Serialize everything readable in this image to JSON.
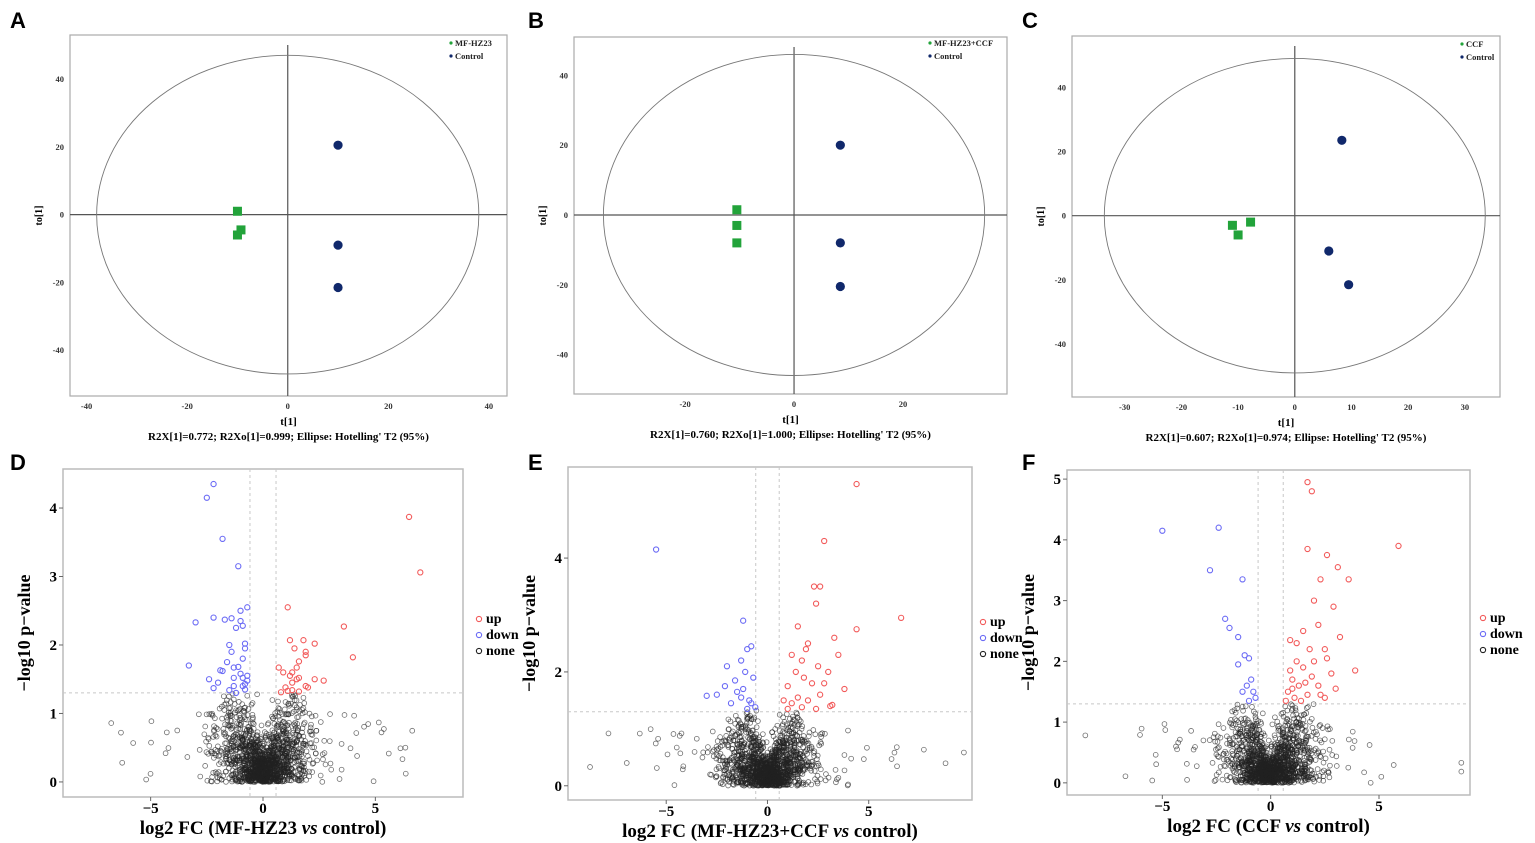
{
  "colors": {
    "green": "#22a33a",
    "navy": "#10286b",
    "up": "#f25b5b",
    "down": "#6b6bf5",
    "none": "#222222",
    "axis": "#555555",
    "box": "#bbbbbb",
    "threshold": "#c8c8c8"
  },
  "chart_data": [
    {
      "panel": "A",
      "type": "scatter",
      "title": "",
      "xlabel": "t[1]",
      "ylabel": "to[1]",
      "caption": "R2X[1]=0.772; R2Xo[1]=0.999; Ellipse: Hotelling' T2 (95%)",
      "xticks": [
        -40,
        -20,
        0,
        20,
        40
      ],
      "yticks": [
        40,
        20,
        0,
        -20,
        -40
      ],
      "xlim": [
        -43.3,
        43.6
      ],
      "ylim": [
        -53.5,
        53
      ],
      "ellipse": {
        "rx": 38,
        "ry": 47
      },
      "legend_position": "top-right",
      "series": [
        {
          "name": "MF-HZ23",
          "marker": "square",
          "color_key": "green",
          "points": [
            [
              -10,
              1
            ],
            [
              -9.3,
              -4.5
            ],
            [
              -10,
              -6
            ]
          ]
        },
        {
          "name": "Control",
          "marker": "circle",
          "color_key": "navy",
          "points": [
            [
              10,
              20.5
            ],
            [
              10,
              -9
            ],
            [
              10,
              -21.5
            ]
          ]
        }
      ]
    },
    {
      "panel": "B",
      "type": "scatter",
      "title": "",
      "xlabel": "t[1]",
      "ylabel": "to[1]",
      "caption": "R2X[1]=0.760; R2Xo[1]=1.000; Ellipse: Hotelling' T2 (95%)",
      "xticks": [
        -20,
        0,
        20
      ],
      "yticks": [
        40,
        20,
        0,
        -20,
        -40
      ],
      "xlim": [
        -40.4,
        39.1
      ],
      "ylim": [
        -51.3,
        51
      ],
      "ellipse": {
        "rx": 35,
        "ry": 46
      },
      "legend_position": "top-right",
      "series": [
        {
          "name": "MF-HZ23+CCF",
          "marker": "square",
          "color_key": "green",
          "points": [
            [
              -10.5,
              1.5
            ],
            [
              -10.5,
              -3
            ],
            [
              -10.5,
              -8
            ]
          ]
        },
        {
          "name": "Control",
          "marker": "circle",
          "color_key": "navy",
          "points": [
            [
              8.5,
              20
            ],
            [
              8.5,
              -8
            ],
            [
              8.5,
              -20.5
            ]
          ]
        }
      ]
    },
    {
      "panel": "C",
      "type": "scatter",
      "title": "",
      "xlabel": "t[1]",
      "ylabel": "to[1]",
      "caption": "R2X[1]=0.607; R2Xo[1]=0.974; Ellipse: Hotelling' T2 (95%)",
      "xticks": [
        -30,
        -20,
        -10,
        0,
        10,
        20,
        30
      ],
      "yticks": [
        40,
        20,
        0,
        -20,
        -40
      ],
      "xlim": [
        -39.3,
        36.2
      ],
      "ylim": [
        -56.5,
        56
      ],
      "ellipse": {
        "rx": 33.6,
        "ry": 49
      },
      "legend_position": "top-right",
      "series": [
        {
          "name": "CCF",
          "marker": "square",
          "color_key": "green",
          "points": [
            [
              -11,
              -3
            ],
            [
              -10,
              -6
            ],
            [
              -7.8,
              -2
            ]
          ]
        },
        {
          "name": "Control",
          "marker": "circle",
          "color_key": "navy",
          "points": [
            [
              8.3,
              23.5
            ],
            [
              6,
              -11
            ],
            [
              9.5,
              -21.5
            ]
          ]
        }
      ]
    },
    {
      "panel": "D",
      "type": "scatter",
      "subtype": "volcano",
      "xlabel_parts": [
        "log2 FC (MF-HZ23 ",
        "vs",
        " control)"
      ],
      "ylabel": "−log10 p−value",
      "xticks": [
        -5,
        0,
        5
      ],
      "xtick_labels": [
        "−5",
        "0",
        "5"
      ],
      "yticks": [
        0,
        1,
        2,
        3,
        4
      ],
      "xlim": [
        -8.9,
        8.9
      ],
      "ylim": [
        -0.22,
        4.57
      ],
      "thresholds": {
        "log2fc": 0.58,
        "neglog10p": 1.3
      },
      "legend_position": "right",
      "legend": [
        "up",
        "down",
        "none"
      ],
      "none_count": 1500,
      "none_seed": 11,
      "series": [
        {
          "name": "up",
          "color_key": "up",
          "points": [
            [
              6.5,
              3.87
            ],
            [
              7,
              3.06
            ],
            [
              3.6,
              2.27
            ],
            [
              4,
              1.82
            ],
            [
              1.1,
              2.55
            ],
            [
              1.2,
              2.07
            ],
            [
              1.8,
              2.07
            ],
            [
              2.3,
              2.02
            ],
            [
              1.4,
              1.95
            ],
            [
              1.9,
              1.9
            ],
            [
              1.9,
              1.85
            ],
            [
              1.6,
              1.76
            ],
            [
              1.5,
              1.67
            ],
            [
              0.7,
              1.67
            ],
            [
              0.9,
              1.6
            ],
            [
              1.3,
              1.6
            ],
            [
              1.2,
              1.55
            ],
            [
              1.6,
              1.52
            ],
            [
              1.5,
              1.5
            ],
            [
              2.3,
              1.5
            ],
            [
              2.7,
              1.48
            ],
            [
              1.3,
              1.45
            ],
            [
              1.9,
              1.4
            ],
            [
              2.0,
              1.38
            ],
            [
              1.0,
              1.38
            ],
            [
              1.1,
              1.33
            ],
            [
              1.3,
              1.34
            ],
            [
              0.8,
              1.31
            ],
            [
              1.6,
              1.32
            ]
          ]
        },
        {
          "name": "down",
          "color_key": "down",
          "points": [
            [
              -2.2,
              4.35
            ],
            [
              -2.5,
              4.15
            ],
            [
              -1.8,
              3.55
            ],
            [
              -1.1,
              3.15
            ],
            [
              -3,
              2.33
            ],
            [
              -2.2,
              2.4
            ],
            [
              -1.7,
              2.37
            ],
            [
              -1.4,
              2.39
            ],
            [
              -1,
              2.5
            ],
            [
              -0.7,
              2.55
            ],
            [
              -1,
              2.35
            ],
            [
              -0.9,
              2.28
            ],
            [
              -1.2,
              2.25
            ],
            [
              -1.5,
              2.0
            ],
            [
              -1.4,
              1.9
            ],
            [
              -0.8,
              2.02
            ],
            [
              -0.8,
              1.95
            ],
            [
              -0.9,
              1.8
            ],
            [
              -1.6,
              1.75
            ],
            [
              -3.3,
              1.7
            ],
            [
              -1.3,
              1.67
            ],
            [
              -1.1,
              1.68
            ],
            [
              -1.9,
              1.63
            ],
            [
              -1.8,
              1.62
            ],
            [
              -1.0,
              1.58
            ],
            [
              -0.7,
              1.55
            ],
            [
              -1.3,
              1.52
            ],
            [
              -0.9,
              1.52
            ],
            [
              -2.4,
              1.5
            ],
            [
              -2.0,
              1.45
            ],
            [
              -0.7,
              1.48
            ],
            [
              -1.3,
              1.4
            ],
            [
              -0.9,
              1.4
            ],
            [
              -0.8,
              1.43
            ],
            [
              -1.5,
              1.34
            ],
            [
              -2.2,
              1.37
            ],
            [
              -1.2,
              1.3
            ],
            [
              -0.8,
              1.35
            ]
          ]
        }
      ]
    },
    {
      "panel": "E",
      "type": "scatter",
      "subtype": "volcano",
      "xlabel_parts": [
        "log2 FC (MF-HZ23+CCF ",
        "vs",
        " control)"
      ],
      "ylabel": "−log10 p−value",
      "xticks": [
        -5,
        0,
        5
      ],
      "xtick_labels": [
        "−5",
        "0",
        "5"
      ],
      "yticks": [
        0,
        2,
        4
      ],
      "xlim": [
        -9.85,
        10.1
      ],
      "ylim": [
        -0.25,
        5.6
      ],
      "thresholds": {
        "log2fc": 0.58,
        "neglog10p": 1.3
      },
      "legend_position": "right",
      "legend": [
        "up",
        "down",
        "none"
      ],
      "none_count": 1500,
      "none_seed": 23,
      "series": [
        {
          "name": "up",
          "color_key": "up",
          "points": [
            [
              4.4,
              5.3
            ],
            [
              2.8,
              4.3
            ],
            [
              2.3,
              3.5
            ],
            [
              2.6,
              3.5
            ],
            [
              2.4,
              3.2
            ],
            [
              6.6,
              2.95
            ],
            [
              4.4,
              2.75
            ],
            [
              1.5,
              2.8
            ],
            [
              3.3,
              2.6
            ],
            [
              2,
              2.5
            ],
            [
              1.2,
              2.3
            ],
            [
              1.7,
              2.2
            ],
            [
              2.5,
              2.1
            ],
            [
              1.4,
              2.0
            ],
            [
              3.0,
              2.0
            ],
            [
              1.8,
              1.9
            ],
            [
              2.2,
              1.8
            ],
            [
              1.0,
              1.75
            ],
            [
              3.8,
              1.7
            ],
            [
              2.6,
              1.6
            ],
            [
              1.5,
              1.55
            ],
            [
              2.0,
              1.5
            ],
            [
              1.2,
              1.45
            ],
            [
              3.1,
              1.4
            ],
            [
              0.8,
              1.5
            ],
            [
              1.7,
              1.38
            ],
            [
              2.4,
              1.35
            ],
            [
              1.0,
              1.35
            ],
            [
              3.2,
              1.42
            ],
            [
              2.8,
              1.8
            ],
            [
              3.5,
              2.3
            ],
            [
              1.9,
              2.4
            ]
          ]
        },
        {
          "name": "down",
          "color_key": "down",
          "points": [
            [
              -5.5,
              4.15
            ],
            [
              -1.2,
              2.9
            ],
            [
              -0.8,
              2.45
            ],
            [
              -1,
              2.4
            ],
            [
              -1.3,
              2.2
            ],
            [
              -2,
              2.1
            ],
            [
              -1.1,
              2.0
            ],
            [
              -1.6,
              1.85
            ],
            [
              -0.7,
              1.9
            ],
            [
              -2.5,
              1.6
            ],
            [
              -3,
              1.58
            ],
            [
              -1.5,
              1.65
            ],
            [
              -0.9,
              1.5
            ],
            [
              -1.2,
              1.7
            ],
            [
              -0.8,
              1.45
            ],
            [
              -1.8,
              1.45
            ],
            [
              -1,
              1.35
            ],
            [
              -0.6,
              1.38
            ],
            [
              -1.3,
              1.55
            ],
            [
              -2.1,
              1.75
            ]
          ]
        }
      ]
    },
    {
      "panel": "F",
      "type": "scatter",
      "subtype": "volcano",
      "xlabel_parts": [
        "log2 FC (CCF ",
        "vs",
        " control)"
      ],
      "ylabel": "−log10 p−value",
      "xticks": [
        -5,
        0,
        5
      ],
      "xtick_labels": [
        "−5",
        "0",
        "5"
      ],
      "yticks": [
        0,
        1,
        2,
        3,
        4,
        5
      ],
      "xlim": [
        -9.4,
        9.2
      ],
      "ylim": [
        -0.2,
        5.15
      ],
      "thresholds": {
        "log2fc": 0.58,
        "neglog10p": 1.3
      },
      "legend_position": "right",
      "legend": [
        "up",
        "down",
        "none"
      ],
      "none_count": 1500,
      "none_seed": 37,
      "series": [
        {
          "name": "up",
          "color_key": "up",
          "points": [
            [
              1.7,
              4.95
            ],
            [
              1.9,
              4.8
            ],
            [
              5.9,
              3.9
            ],
            [
              2.6,
              3.75
            ],
            [
              1.7,
              3.85
            ],
            [
              3.1,
              3.55
            ],
            [
              3.6,
              3.35
            ],
            [
              2.3,
              3.35
            ],
            [
              2.0,
              3.0
            ],
            [
              2.9,
              2.9
            ],
            [
              2.2,
              2.6
            ],
            [
              1.5,
              2.5
            ],
            [
              3.2,
              2.4
            ],
            [
              1.2,
              2.3
            ],
            [
              2.5,
              2.2
            ],
            [
              1.8,
              2.2
            ],
            [
              0.9,
              2.35
            ],
            [
              3.9,
              1.85
            ],
            [
              2.0,
              2.0
            ],
            [
              1.5,
              1.9
            ],
            [
              2.8,
              1.8
            ],
            [
              1.0,
              1.7
            ],
            [
              1.3,
              1.6
            ],
            [
              2.2,
              1.6
            ],
            [
              0.8,
              1.5
            ],
            [
              1.7,
              1.45
            ],
            [
              1.1,
              1.4
            ],
            [
              2.5,
              1.4
            ],
            [
              0.7,
              1.35
            ],
            [
              1.4,
              1.35
            ],
            [
              3.0,
              1.55
            ],
            [
              1.9,
              1.75
            ],
            [
              1.2,
              2.0
            ],
            [
              2.6,
              2.05
            ],
            [
              0.9,
              1.85
            ],
            [
              1.6,
              1.65
            ],
            [
              2.3,
              1.45
            ],
            [
              1.0,
              1.55
            ]
          ]
        },
        {
          "name": "down",
          "color_key": "down",
          "points": [
            [
              -5,
              4.15
            ],
            [
              -2.4,
              4.2
            ],
            [
              -2.8,
              3.5
            ],
            [
              -1.3,
              3.35
            ],
            [
              -2.1,
              2.7
            ],
            [
              -1.9,
              2.55
            ],
            [
              -1.2,
              2.1
            ],
            [
              -1.0,
              2.05
            ],
            [
              -1.5,
              1.95
            ],
            [
              -0.9,
              1.7
            ],
            [
              -1.1,
              1.6
            ],
            [
              -0.8,
              1.5
            ],
            [
              -1.3,
              1.5
            ],
            [
              -0.7,
              1.4
            ],
            [
              -1.0,
              1.35
            ],
            [
              -1.5,
              2.4
            ]
          ]
        }
      ]
    }
  ]
}
